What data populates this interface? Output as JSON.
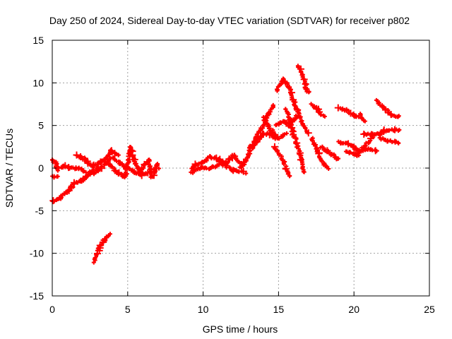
{
  "chart_data": {
    "type": "scatter",
    "title": "Day 250 of 2024, Sidereal Day-to-day VTEC variation (SDTVAR) for receiver p802",
    "xlabel": "GPS time / hours",
    "ylabel": "SDTVAR / TECUs",
    "xlim": [
      0,
      25
    ],
    "ylim": [
      -15,
      15
    ],
    "xticks": [
      "0",
      "5",
      "10",
      "15",
      "20",
      "25"
    ],
    "yticks": [
      "-15",
      "-10",
      "-5",
      "0",
      "5",
      "10",
      "15"
    ],
    "xtick_values": [
      0,
      5,
      10,
      15,
      20,
      25
    ],
    "ytick_values": [
      -15,
      -10,
      -5,
      0,
      5,
      10,
      15
    ],
    "grid": true,
    "marker": "+",
    "color": "#ff0000",
    "series_note": "tracks of per-satellite values, points given as [hour, TECU]",
    "tracks": [
      [
        [
          0,
          1
        ],
        [
          0.3,
          0.5
        ],
        [
          0.3,
          -0.3
        ]
      ],
      [
        [
          0,
          -1
        ],
        [
          0.35,
          -1
        ]
      ],
      [
        [
          0,
          -4
        ],
        [
          0.5,
          -3.5
        ],
        [
          1,
          -2.8
        ],
        [
          1.5,
          -1.8
        ],
        [
          2,
          -1.5
        ],
        [
          2.5,
          -0.5
        ],
        [
          3,
          0
        ]
      ],
      [
        [
          0.3,
          0
        ],
        [
          0.8,
          0.2
        ],
        [
          1.2,
          0
        ],
        [
          1.8,
          0
        ],
        [
          2.2,
          -0.5
        ]
      ],
      [
        [
          1.6,
          1.5
        ],
        [
          2.2,
          1
        ],
        [
          2.6,
          0.3
        ],
        [
          3.2,
          0.6
        ],
        [
          3.5,
          1
        ],
        [
          3.9,
          2
        ],
        [
          4.4,
          1.5
        ]
      ],
      [
        [
          2.8,
          -11
        ],
        [
          3.1,
          -9.5
        ],
        [
          3.4,
          -8.5
        ],
        [
          3.8,
          -7.8
        ]
      ],
      [
        [
          1.8,
          -1.5
        ],
        [
          2.5,
          -0.8
        ],
        [
          3,
          -0.3
        ],
        [
          3.5,
          0.5
        ],
        [
          4,
          1.2
        ],
        [
          4.5,
          0.5
        ],
        [
          5,
          0
        ],
        [
          5.5,
          -0.5
        ],
        [
          6,
          -0.8
        ],
        [
          6.5,
          -0.5
        ],
        [
          7,
          0.5
        ]
      ],
      [
        [
          3.8,
          0.5
        ],
        [
          4.3,
          -0.5
        ],
        [
          4.8,
          -1
        ],
        [
          5,
          0.5
        ],
        [
          5.2,
          2.5
        ],
        [
          5.4,
          1
        ],
        [
          5.8,
          -0.5
        ],
        [
          6.2,
          0.5
        ],
        [
          6.4,
          1
        ],
        [
          6.6,
          -1
        ],
        [
          7,
          0
        ]
      ],
      [
        [
          9.2,
          0
        ],
        [
          9.6,
          0.5
        ],
        [
          10,
          0.6
        ],
        [
          10.5,
          1.3
        ],
        [
          11,
          1
        ],
        [
          11.5,
          0.5
        ],
        [
          12,
          1.5
        ],
        [
          12.5,
          0.5
        ]
      ],
      [
        [
          9.2,
          -0.5
        ],
        [
          9.8,
          0
        ],
        [
          10.5,
          0
        ],
        [
          11.2,
          0.5
        ],
        [
          12,
          -0.3
        ],
        [
          12.8,
          -0.5
        ]
      ],
      [
        [
          12.5,
          0
        ],
        [
          13,
          1.5
        ],
        [
          13.5,
          3
        ],
        [
          14,
          4
        ],
        [
          14.5,
          4
        ],
        [
          14.8,
          3.5
        ]
      ],
      [
        [
          13,
          2
        ],
        [
          13.5,
          3.5
        ],
        [
          14,
          5
        ],
        [
          14.4,
          6.5
        ],
        [
          14.7,
          7.5
        ]
      ],
      [
        [
          14.9,
          9
        ],
        [
          15.3,
          10.4
        ],
        [
          15.7,
          9.5
        ],
        [
          16,
          8
        ],
        [
          16.3,
          6.5
        ],
        [
          16.6,
          5
        ],
        [
          17,
          4.2
        ]
      ],
      [
        [
          15.5,
          7
        ],
        [
          15.8,
          5
        ],
        [
          16.2,
          3
        ],
        [
          16.5,
          1
        ],
        [
          16.7,
          -0.5
        ]
      ],
      [
        [
          14,
          6
        ],
        [
          14.3,
          5
        ],
        [
          14.7,
          4
        ],
        [
          15,
          3.5
        ],
        [
          15.5,
          4
        ]
      ],
      [
        [
          14.8,
          5
        ],
        [
          15.3,
          5.5
        ],
        [
          15.8,
          5
        ],
        [
          16.2,
          6.2
        ]
      ],
      [
        [
          14.7,
          2.5
        ],
        [
          15.3,
          1
        ],
        [
          15.7,
          -1
        ]
      ],
      [
        [
          16.3,
          12
        ],
        [
          16.6,
          11
        ],
        [
          16.8,
          9.5
        ],
        [
          17,
          8.8
        ]
      ],
      [
        [
          17.2,
          7.5
        ],
        [
          17.6,
          6.8
        ],
        [
          18,
          6
        ]
      ],
      [
        [
          17.2,
          3.5
        ],
        [
          17.6,
          2
        ],
        [
          18,
          0.5
        ],
        [
          18.3,
          0
        ]
      ],
      [
        [
          17.8,
          2.5
        ],
        [
          18.2,
          2
        ],
        [
          18.6,
          1.5
        ],
        [
          19,
          1
        ]
      ],
      [
        [
          19,
          7
        ],
        [
          19.5,
          6.8
        ],
        [
          20,
          6.2
        ],
        [
          20.3,
          6
        ]
      ],
      [
        [
          20.4,
          6.3
        ],
        [
          20.7,
          5.5
        ]
      ],
      [
        [
          19,
          3
        ],
        [
          19.5,
          3
        ],
        [
          20,
          2.5
        ],
        [
          20.3,
          2
        ],
        [
          21,
          2.2
        ],
        [
          21.5,
          2
        ]
      ],
      [
        [
          19.5,
          2
        ],
        [
          20.2,
          1.5
        ],
        [
          20.7,
          2.5
        ],
        [
          21.2,
          3.5
        ]
      ],
      [
        [
          20.6,
          4
        ],
        [
          21.2,
          4
        ],
        [
          21.7,
          4
        ],
        [
          22.2,
          4.5
        ],
        [
          23,
          4.5
        ]
      ],
      [
        [
          21.5,
          8
        ],
        [
          22,
          7
        ],
        [
          22.5,
          6.3
        ],
        [
          23,
          6
        ]
      ],
      [
        [
          21.7,
          3.5
        ],
        [
          22.2,
          3.2
        ],
        [
          23,
          3
        ]
      ]
    ]
  }
}
